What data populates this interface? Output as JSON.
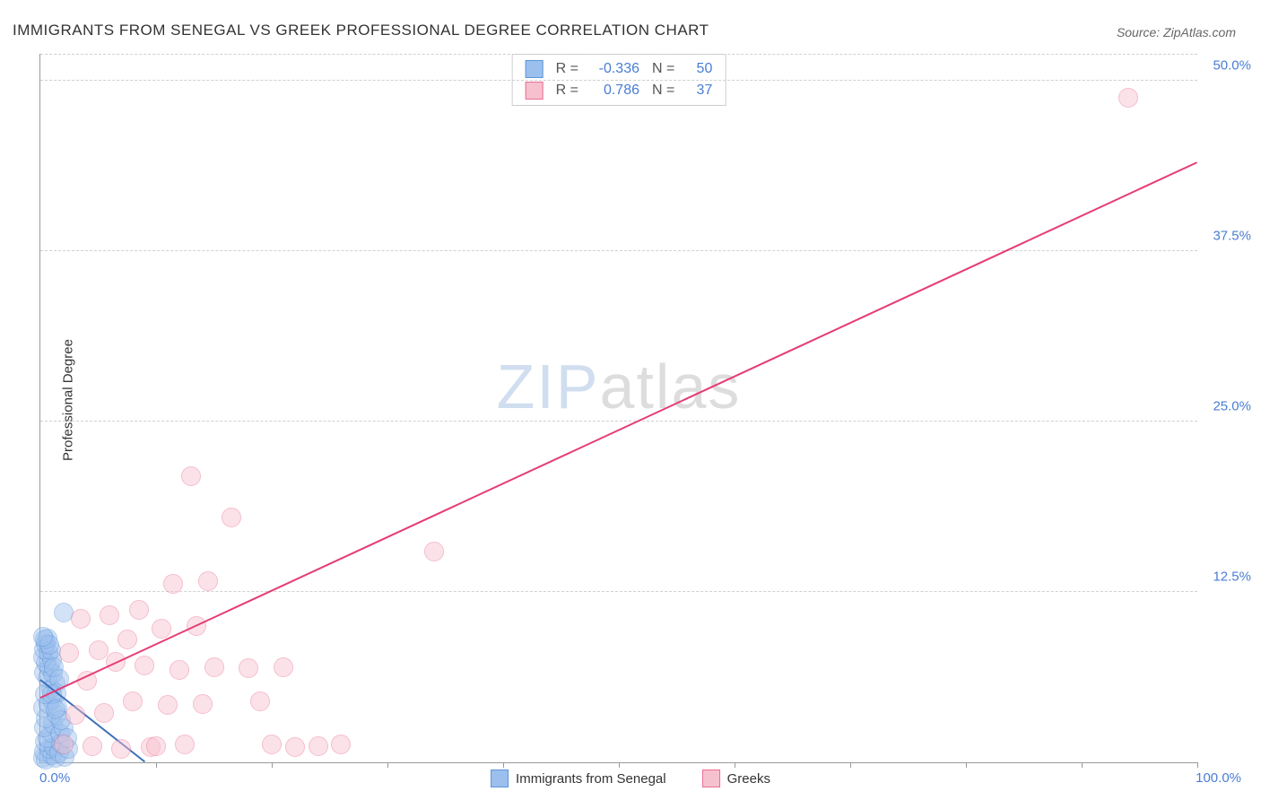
{
  "title": "IMMIGRANTS FROM SENEGAL VS GREEK PROFESSIONAL DEGREE CORRELATION CHART",
  "source": "Source: ZipAtlas.com",
  "ylabel": "Professional Degree",
  "watermark": {
    "zip": "ZIP",
    "atlas": "atlas"
  },
  "chart": {
    "type": "scatter",
    "xlim": [
      0,
      100
    ],
    "ylim": [
      0,
      52
    ],
    "yticks": [
      {
        "value": 12.5,
        "label": "12.5%"
      },
      {
        "value": 25.0,
        "label": "25.0%"
      },
      {
        "value": 37.5,
        "label": "37.5%"
      },
      {
        "value": 50.0,
        "label": "50.0%"
      }
    ],
    "xticks_minor": [
      10,
      20,
      30,
      40,
      50,
      60,
      70,
      80,
      90,
      100
    ],
    "x_origin_label": "0.0%",
    "x_max_label": "100.0%",
    "background": "#ffffff",
    "grid_color": "#d0d0d0",
    "axis_color": "#999999",
    "point_radius": 10,
    "point_opacity": 0.45,
    "series": [
      {
        "id": "senegal",
        "label": "Immigrants from Senegal",
        "fill": "#9cc0ee",
        "stroke": "#5c94d8",
        "R": "-0.336",
        "N": "50",
        "trend": {
          "x1": 0.0,
          "y1": 6.0,
          "x2": 9.0,
          "y2": 0.0,
          "color": "#3b6fb9",
          "dash": false
        },
        "points": [
          [
            0.2,
            0.3
          ],
          [
            0.5,
            0.2
          ],
          [
            0.3,
            0.8
          ],
          [
            1.0,
            0.5
          ],
          [
            1.3,
            0.3
          ],
          [
            0.8,
            1.0
          ],
          [
            0.4,
            1.5
          ],
          [
            1.2,
            1.1
          ],
          [
            0.6,
            1.8
          ],
          [
            1.6,
            0.7
          ],
          [
            0.9,
            2.2
          ],
          [
            1.8,
            1.4
          ],
          [
            0.3,
            2.6
          ],
          [
            2.1,
            0.4
          ],
          [
            1.1,
            2.8
          ],
          [
            0.5,
            3.2
          ],
          [
            2.4,
            1.0
          ],
          [
            1.4,
            3.5
          ],
          [
            0.2,
            4.0
          ],
          [
            0.7,
            4.3
          ],
          [
            1.0,
            4.6
          ],
          [
            1.7,
            2.1
          ],
          [
            0.4,
            5.0
          ],
          [
            2.0,
            2.5
          ],
          [
            0.9,
            5.4
          ],
          [
            1.3,
            5.8
          ],
          [
            0.6,
            6.2
          ],
          [
            2.3,
            1.8
          ],
          [
            0.3,
            6.6
          ],
          [
            1.5,
            4.0
          ],
          [
            0.8,
            7.0
          ],
          [
            1.1,
            6.5
          ],
          [
            0.5,
            7.3
          ],
          [
            0.2,
            7.7
          ],
          [
            1.8,
            3.1
          ],
          [
            0.7,
            8.0
          ],
          [
            1.0,
            7.5
          ],
          [
            0.3,
            8.3
          ],
          [
            1.4,
            5.1
          ],
          [
            0.5,
            8.7
          ],
          [
            0.9,
            8.2
          ],
          [
            1.2,
            7.0
          ],
          [
            0.4,
            9.0
          ],
          [
            0.6,
            9.1
          ],
          [
            0.8,
            8.6
          ],
          [
            1.6,
            6.1
          ],
          [
            0.2,
            9.2
          ],
          [
            2.0,
            11.0
          ],
          [
            1.0,
            5.0
          ],
          [
            1.3,
            3.9
          ]
        ]
      },
      {
        "id": "greeks",
        "label": "Greeks",
        "fill": "#f7c0ce",
        "stroke": "#e96f93",
        "R": "0.786",
        "N": "37",
        "trend": {
          "x1": 0.0,
          "y1": 4.7,
          "x2": 100.0,
          "y2": 44.0,
          "color": "#e63b74",
          "dash": false
        },
        "points": [
          [
            2.0,
            1.3
          ],
          [
            4.5,
            1.2
          ],
          [
            7.0,
            1.0
          ],
          [
            9.5,
            1.1
          ],
          [
            3.0,
            3.5
          ],
          [
            5.5,
            3.6
          ],
          [
            8.0,
            4.5
          ],
          [
            11.0,
            4.2
          ],
          [
            14.0,
            4.3
          ],
          [
            4.0,
            6.0
          ],
          [
            6.5,
            7.4
          ],
          [
            9.0,
            7.1
          ],
          [
            12.0,
            6.8
          ],
          [
            15.0,
            7.0
          ],
          [
            18.0,
            6.9
          ],
          [
            2.5,
            8.0
          ],
          [
            5.0,
            8.2
          ],
          [
            7.5,
            9.0
          ],
          [
            10.5,
            9.8
          ],
          [
            13.5,
            10.0
          ],
          [
            3.5,
            10.5
          ],
          [
            6.0,
            10.8
          ],
          [
            8.5,
            11.2
          ],
          [
            11.5,
            13.1
          ],
          [
            14.5,
            13.3
          ],
          [
            16.5,
            18.0
          ],
          [
            13.0,
            21.0
          ],
          [
            20.0,
            1.3
          ],
          [
            22.0,
            1.1
          ],
          [
            24.0,
            1.2
          ],
          [
            26.0,
            1.3
          ],
          [
            21.0,
            7.0
          ],
          [
            19.0,
            4.5
          ],
          [
            34.0,
            15.5
          ],
          [
            10.0,
            1.2
          ],
          [
            12.5,
            1.3
          ],
          [
            94.0,
            48.8
          ]
        ]
      }
    ]
  },
  "bottom_legend": [
    {
      "label": "Immigrants from Senegal",
      "fill": "#9cc0ee",
      "stroke": "#5c94d8"
    },
    {
      "label": "Greeks",
      "fill": "#f7c0ce",
      "stroke": "#e96f93"
    }
  ],
  "top_legend": {
    "R_label": "R =",
    "N_label": "N =",
    "value_color": "#4a7dd4"
  }
}
